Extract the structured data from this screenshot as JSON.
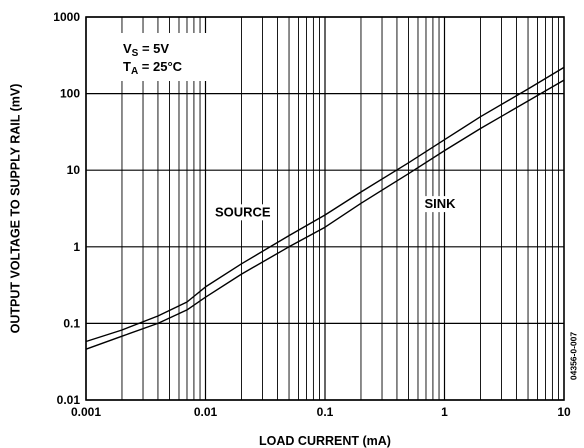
{
  "chart_data": {
    "type": "line",
    "xscale": "log",
    "yscale": "log",
    "xlim": [
      0.001,
      10
    ],
    "ylim": [
      0.01,
      1000
    ],
    "xlabel": "LOAD CURRENT (mA)",
    "ylabel": "OUTPUT VOLTAGE TO SUPPLY RAIL (mV)",
    "x_ticks": [
      "0.001",
      "0.01",
      "0.1",
      "1",
      "10"
    ],
    "y_ticks": [
      "0.01",
      "0.1",
      "1",
      "10",
      "100",
      "1000"
    ],
    "grid": true,
    "conditions": {
      "vs_main": "V",
      "vs_sub": "S",
      "vs_rest": " = 5V",
      "ta_main": "T",
      "ta_sub": "A",
      "ta_rest": " = 25°C"
    },
    "figure_code": "04356-0-007",
    "labels": [
      {
        "text": "SOURCE",
        "x": 0.012,
        "y": 2.5
      },
      {
        "text": "SINK",
        "x": 0.68,
        "y": 3.2
      }
    ],
    "series": [
      {
        "name": "SOURCE",
        "x": [
          0.001,
          0.002,
          0.004,
          0.007,
          0.01,
          0.02,
          0.05,
          0.1,
          0.2,
          0.5,
          1,
          2,
          5,
          10
        ],
        "y": [
          0.058,
          0.082,
          0.125,
          0.19,
          0.3,
          0.6,
          1.4,
          2.6,
          5.2,
          12.5,
          25,
          50,
          115,
          220
        ]
      },
      {
        "name": "SINK",
        "x": [
          0.001,
          0.002,
          0.004,
          0.007,
          0.01,
          0.02,
          0.05,
          0.1,
          0.2,
          0.5,
          1,
          2,
          5,
          10
        ],
        "y": [
          0.046,
          0.068,
          0.1,
          0.15,
          0.22,
          0.44,
          1.0,
          1.8,
          3.7,
          9,
          18,
          35,
          80,
          150
        ]
      }
    ]
  }
}
